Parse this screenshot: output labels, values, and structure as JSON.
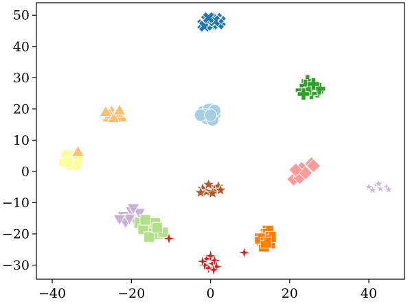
{
  "chart_data": {
    "type": "scatter",
    "title": "",
    "xlabel": "",
    "ylabel": "",
    "xlim": [
      -44,
      49
    ],
    "ylim": [
      -34.5,
      54
    ],
    "xticks": [
      -40,
      -20,
      0,
      20,
      40
    ],
    "yticks": [
      -30,
      -20,
      -10,
      0,
      10,
      20,
      30,
      40,
      50
    ],
    "xtick_labels": [
      "−40",
      "−20",
      "0",
      "20",
      "40"
    ],
    "ytick_labels": [
      "−30",
      "−20",
      "−10",
      "0",
      "10",
      "20",
      "30",
      "40",
      "50"
    ],
    "grid": false,
    "legend": false,
    "series": [
      {
        "color": "#1f78b4",
        "marker": "x-cross",
        "points": [
          [
            -2,
            47
          ],
          [
            -1,
            48.5
          ],
          [
            0,
            47.5
          ],
          [
            1.5,
            49
          ],
          [
            2.5,
            48
          ],
          [
            -1.5,
            46.5
          ],
          [
            0.5,
            46.8
          ],
          [
            2,
            47.2
          ],
          [
            1,
            48.2
          ],
          [
            -0.5,
            49.2
          ]
        ]
      },
      {
        "color": "#33a02c",
        "marker": "plus",
        "points": [
          [
            23,
            26
          ],
          [
            24.5,
            29
          ],
          [
            26,
            27
          ],
          [
            27,
            25.5
          ],
          [
            25.5,
            25
          ],
          [
            24,
            27.5
          ],
          [
            25,
            26.3
          ],
          [
            23.5,
            24.8
          ],
          [
            27.5,
            26.5
          ],
          [
            26,
            28
          ]
        ]
      },
      {
        "color": "#a6cee3",
        "marker": "circle",
        "points": [
          [
            -2,
            19
          ],
          [
            0,
            20
          ],
          [
            -1,
            17
          ],
          [
            1,
            18
          ],
          [
            -0.5,
            19.8
          ],
          [
            -1.5,
            18.2
          ],
          [
            0.5,
            16.5
          ],
          [
            -2.5,
            18
          ],
          [
            1,
            19.5
          ],
          [
            0,
            18
          ]
        ]
      },
      {
        "color": "#fdbf6f",
        "marker": "triangle-up",
        "points": [
          [
            -25,
            19
          ],
          [
            -24,
            17.5
          ],
          [
            -26,
            17
          ],
          [
            -22.5,
            17
          ],
          [
            -23.5,
            18.5
          ],
          [
            -25.5,
            18
          ],
          [
            -24.5,
            16.8
          ],
          [
            -23,
            19.2
          ],
          [
            -26.5,
            18.8
          ]
        ]
      },
      {
        "color": "#ffff99",
        "marker": "hexagon",
        "points": [
          [
            -36,
            4
          ],
          [
            -34.5,
            3
          ],
          [
            -35,
            5
          ],
          [
            -37,
            3
          ],
          [
            -35.5,
            2
          ],
          [
            -33.5,
            4
          ],
          [
            -36.5,
            5.2
          ],
          [
            -34,
            2
          ],
          [
            -36,
            3
          ]
        ]
      },
      {
        "color": "#fdbf6f",
        "marker": "triangle-up",
        "points": [
          [
            -33.5,
            6
          ]
        ]
      },
      {
        "color": "#fb9a99",
        "marker": "diamond",
        "points": [
          [
            21,
            -2.5
          ],
          [
            22,
            0
          ],
          [
            23.5,
            -1
          ],
          [
            24.5,
            1.5
          ],
          [
            25.5,
            2.5
          ],
          [
            23,
            1
          ],
          [
            22.5,
            -2
          ],
          [
            24,
            -0.5
          ],
          [
            26,
            1.8
          ],
          [
            21.5,
            0.5
          ]
        ]
      },
      {
        "color": "#cab2d6",
        "marker": "star-thin",
        "points": [
          [
            40,
            -5
          ],
          [
            42,
            -4.5
          ],
          [
            44.5,
            -5
          ],
          [
            41,
            -6
          ],
          [
            43,
            -5.5
          ],
          [
            45,
            -5.8
          ],
          [
            42.5,
            -4
          ]
        ]
      },
      {
        "color": "#b15928",
        "marker": "star5",
        "points": [
          [
            -2,
            -5.5
          ],
          [
            0,
            -5
          ],
          [
            2,
            -4.8
          ],
          [
            -1,
            -6.5
          ],
          [
            1,
            -6
          ],
          [
            -0.5,
            -4.2
          ],
          [
            2.5,
            -6
          ],
          [
            -2.5,
            -6.8
          ],
          [
            0.5,
            -7
          ]
        ]
      },
      {
        "color": "#cab2d6",
        "marker": "triangle-down",
        "points": [
          [
            -22,
            -14
          ],
          [
            -20,
            -12.5
          ],
          [
            -19,
            -15.5
          ],
          [
            -21.5,
            -16
          ],
          [
            -18,
            -13
          ],
          [
            -20.5,
            -14.8
          ],
          [
            -23,
            -15
          ],
          [
            -19.5,
            -11.5
          ]
        ]
      },
      {
        "color": "#b2df8a",
        "marker": "square",
        "points": [
          [
            -18,
            -16.5
          ],
          [
            -16,
            -17
          ],
          [
            -15,
            -19
          ],
          [
            -13,
            -20
          ],
          [
            -17,
            -18.5
          ],
          [
            -14,
            -16.5
          ],
          [
            -15.5,
            -21
          ],
          [
            -12,
            -19.5
          ],
          [
            -16.5,
            -15.5
          ],
          [
            -13.5,
            -18
          ]
        ]
      },
      {
        "color": "#e31a1c",
        "marker": "star4",
        "points": [
          [
            -10.5,
            -21.5
          ],
          [
            8.5,
            -26
          ]
        ]
      },
      {
        "color": "#ff7f00",
        "marker": "square-notch",
        "points": [
          [
            14,
            -20
          ],
          [
            13,
            -22
          ],
          [
            15,
            -23
          ],
          [
            14.5,
            -19
          ],
          [
            13.5,
            -24
          ],
          [
            12.5,
            -21.5
          ],
          [
            15.2,
            -21
          ],
          [
            14,
            -22.8
          ]
        ]
      },
      {
        "color": "#e31a1c",
        "marker": "star4",
        "points": [
          [
            -1,
            -28
          ],
          [
            0.5,
            -29.5
          ],
          [
            -0.5,
            -31
          ],
          [
            1,
            -28.5
          ],
          [
            -1.5,
            -30
          ],
          [
            0,
            -27
          ],
          [
            1.5,
            -30.5
          ],
          [
            -2,
            -28.8
          ],
          [
            0.8,
            -31.5
          ]
        ]
      }
    ]
  }
}
